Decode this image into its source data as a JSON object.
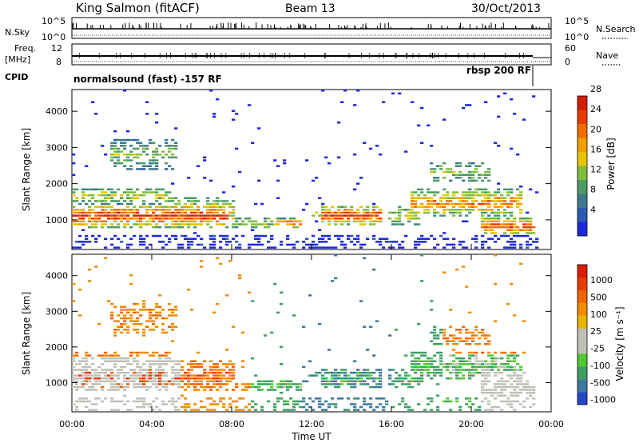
{
  "header": {
    "title": "King Salmon (fitACF)",
    "beam": "Beam 13",
    "date": "30/Oct/2013"
  },
  "strips": {
    "nsky_label": "N.Sky",
    "nsearch_label": "N.Search",
    "nsky_ticks": [
      "10^5",
      "10^0"
    ],
    "nsearch_ticks": [
      "10^5",
      "10^0"
    ],
    "freq_label_1": "Freq.",
    "freq_label_2": "[MHz]",
    "freq_ticks": [
      "12",
      "8"
    ],
    "nave_label": "Nave",
    "nave_ticks": [
      "60",
      "0"
    ],
    "cpid_label": "CPID",
    "cpid_left": "normalsound (fast) -157 RF",
    "cpid_right": "rbsp 200 RF"
  },
  "chart_data": [
    {
      "type": "heatmap",
      "name": "power",
      "ylabel": "Slant Range [km]",
      "yticks": [
        1000,
        2000,
        3000,
        4000
      ],
      "ylim": [
        180,
        4600
      ],
      "xlim": [
        0,
        24
      ],
      "colorbar": {
        "label": "Power [dB]",
        "ticks": [
          "4",
          "8",
          "12",
          "16",
          "20",
          "24",
          "28"
        ],
        "colors": [
          "#1e28dc",
          "#2d5ab4",
          "#3e7a8c",
          "#4e9a64",
          "#7fbe3c",
          "#e6c400",
          "#f0a000",
          "#f06e00",
          "#e63c00",
          "#d21e00"
        ]
      }
    },
    {
      "type": "heatmap",
      "name": "velocity",
      "ylabel": "Slant Range [km]",
      "yticks": [
        1000,
        2000,
        3000,
        4000
      ],
      "ylim": [
        180,
        4600
      ],
      "xlim": [
        0,
        24
      ],
      "xticks": [
        "00:00",
        "04:00",
        "08:00",
        "12:00",
        "16:00",
        "20:00",
        "00:00"
      ],
      "xlabel": "Time UT",
      "colorbar": {
        "label": "Velocity [m s⁻¹]",
        "ticks": [
          "1000",
          "500",
          "100",
          "25",
          "-25",
          "-100",
          "-500",
          "-1000"
        ],
        "colors": [
          "#2846c8",
          "#3c78a0",
          "#3ca064",
          "#50c832",
          "#c0c0b8",
          "#c0c0b8",
          "#e6b400",
          "#f08c00",
          "#ee6400",
          "#e63c00",
          "#dc1e00"
        ]
      }
    }
  ]
}
